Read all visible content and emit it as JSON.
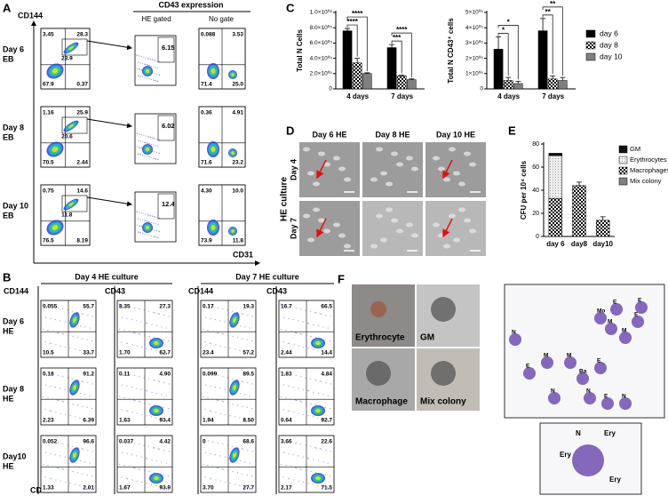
{
  "panel_a": {
    "letter": "A",
    "y_axis": "CD144",
    "x_axis": "CD31",
    "header": "CD43 expression",
    "subheaders": [
      "HE gated",
      "No gate"
    ],
    "rows": [
      {
        "label": [
          "Day 6",
          "EB"
        ],
        "main": {
          "tl": "3.45",
          "tr": "28.3",
          "mid": "23.9",
          "bl": "67.9",
          "br": "0.37"
        },
        "gated": "6.15",
        "no_gate": {
          "tl": "0.088",
          "tr": "3.53",
          "bl": "71.4",
          "br": "25.0"
        }
      },
      {
        "label": [
          "Day 8",
          "EB"
        ],
        "main": {
          "tl": "1.16",
          "tr": "25.9",
          "mid": "20.6",
          "bl": "70.5",
          "br": "2.44"
        },
        "gated": "6.02",
        "no_gate": {
          "tl": "0.36",
          "tr": "4.91",
          "bl": "71.6",
          "br": "23.2"
        }
      },
      {
        "label": [
          "Day 10",
          "EB"
        ],
        "main": {
          "tl": "0.75",
          "tr": "14.6",
          "mid": "11.8",
          "bl": "76.5",
          "br": "8.19"
        },
        "gated": "12.4",
        "no_gate": {
          "tl": "4.30",
          "tr": "10.0",
          "bl": "73.9",
          "br": "11.8"
        }
      }
    ]
  },
  "panel_b": {
    "letter": "B",
    "headers": [
      "Day 4  HE culture",
      "Day 7  HE culture"
    ],
    "y_axes": [
      "CD144",
      "CD43",
      "CD144",
      "CD43"
    ],
    "x_axis": "CD31",
    "rows": [
      {
        "label": [
          "Day 6",
          "HE"
        ],
        "plots": [
          {
            "tl": "0.055",
            "tr": "55.7",
            "bl": "10.5",
            "br": "33.7"
          },
          {
            "tl": "8.35",
            "tr": "27.3",
            "bl": "1.70",
            "br": "62.7"
          },
          {
            "tl": "0.17",
            "tr": "19.3",
            "bl": "23.4",
            "br": "57.2"
          },
          {
            "tl": "16.7",
            "tr": "66.5",
            "bl": "2.44",
            "br": "14.4"
          }
        ]
      },
      {
        "label": [
          "Day 8",
          "HE"
        ],
        "plots": [
          {
            "tl": "0.18",
            "tr": "91.2",
            "bl": "2.23",
            "br": "6.39"
          },
          {
            "tl": "0.11",
            "tr": "4.90",
            "bl": "1.63",
            "br": "93.4"
          },
          {
            "tl": "0.099",
            "tr": "89.5",
            "bl": "1.94",
            "br": "8.50"
          },
          {
            "tl": "1.83",
            "tr": "4.84",
            "bl": "0.64",
            "br": "92.7"
          }
        ]
      },
      {
        "label": [
          "Day10",
          "HE"
        ],
        "plots": [
          {
            "tl": "0.052",
            "tr": "96.6",
            "bl": "1.33",
            "br": "2.01"
          },
          {
            "tl": "0.037",
            "tr": "4.42",
            "bl": "1.67",
            "br": "93.9"
          },
          {
            "tl": "0",
            "tr": "68.6",
            "bl": "3.70",
            "br": "27.7"
          },
          {
            "tl": "3.66",
            "tr": "22.6",
            "bl": "2.17",
            "br": "71.5"
          }
        ]
      }
    ]
  },
  "panel_c": {
    "letter": "C",
    "series": [
      {
        "name": "day 6",
        "color": "#000000"
      },
      {
        "name": "day 8",
        "color": "#000000",
        "pattern": true
      },
      {
        "name": "day 10",
        "color": "#808080"
      }
    ],
    "charts": [
      {
        "type": "bar",
        "ylabel": "Total N Cells",
        "categories": [
          "4 days",
          "7 days"
        ],
        "series_values": [
          [
            760000,
            540000
          ],
          [
            340000,
            170000
          ],
          [
            200000,
            120000
          ]
        ],
        "series_errors": [
          [
            30000,
            40000
          ],
          [
            60000,
            10000
          ],
          [
            10000,
            10000
          ]
        ],
        "ylim": [
          0,
          1000000
        ],
        "yticks": [
          0,
          {
            "value": 200000,
            "label": "2.0×10⁰⁵"
          },
          {
            "value": 400000,
            "label": "4.0×10⁰⁵"
          },
          {
            "value": 600000,
            "label": "6.0×10⁰⁵"
          },
          {
            "value": 800000,
            "label": "8.0×10⁰⁵"
          },
          {
            "value": 1000000,
            "label": "1.0×10⁰⁶"
          }
        ],
        "significance": [
          [
            "****",
            "****"
          ],
          [
            "***",
            "****"
          ]
        ]
      },
      {
        "type": "bar",
        "ylabel": "Total N CD43⁺ cells",
        "categories": [
          "4 days",
          "7 days"
        ],
        "series_values": [
          [
            260000,
            380000
          ],
          [
            55000,
            65000
          ],
          [
            35000,
            55000
          ]
        ],
        "series_errors": [
          [
            80000,
            80000
          ],
          [
            20000,
            20000
          ],
          [
            15000,
            20000
          ]
        ],
        "ylim": [
          0,
          500000
        ],
        "yticks": [
          0,
          {
            "value": 100000,
            "label": "1×10⁰⁵"
          },
          {
            "value": 200000,
            "label": "2×10⁰⁵"
          },
          {
            "value": 300000,
            "label": "3×10⁰⁵"
          },
          {
            "value": 400000,
            "label": "4×10⁰⁵"
          },
          {
            "value": 500000,
            "label": "5×10⁰⁵"
          }
        ],
        "significance": [
          [
            "*",
            "*"
          ],
          [
            "**",
            "**"
          ]
        ]
      }
    ]
  },
  "panel_d": {
    "letter": "D",
    "columns": [
      "Day 6 HE",
      "Day 8 HE",
      "Day 10 HE"
    ],
    "rows": [
      "Day 4",
      "Day 7"
    ],
    "side_label": "HE culture"
  },
  "panel_e": {
    "letter": "E",
    "type": "bar",
    "stacked": true,
    "ylabel": "CFU per 10⁴ cells",
    "categories": [
      "day 6",
      "day8",
      "day10"
    ],
    "series": [
      {
        "name": "GM",
        "color": "#111111",
        "values": [
          2,
          0,
          0
        ]
      },
      {
        "name": "Erythrocytes",
        "color": "#e6e6e6",
        "pattern": "dots",
        "values": [
          37,
          0,
          0
        ]
      },
      {
        "name": "Macrophages",
        "color": "#000000",
        "pattern": "checker",
        "values": [
          33,
          44,
          14
        ],
        "errors": [
          5,
          3,
          3
        ]
      },
      {
        "name": "Mix colony",
        "color": "#808080",
        "values": [
          0,
          0,
          0
        ]
      }
    ],
    "ylim": [
      0,
      80
    ],
    "yticks": [
      0,
      20,
      40,
      60,
      80
    ]
  },
  "panel_f": {
    "letter": "F",
    "images": [
      "Erythrocyte",
      "GM",
      "Macrophage",
      "Mix colony"
    ],
    "cell_labels": [
      "E",
      "Mo",
      "M",
      "M",
      "E",
      "N",
      "E",
      "M",
      "M",
      "Ba",
      "E",
      "N",
      "E",
      "N",
      "E",
      "N"
    ],
    "inset_labels": [
      "N",
      "Ery",
      "Ery",
      "Ery"
    ]
  }
}
